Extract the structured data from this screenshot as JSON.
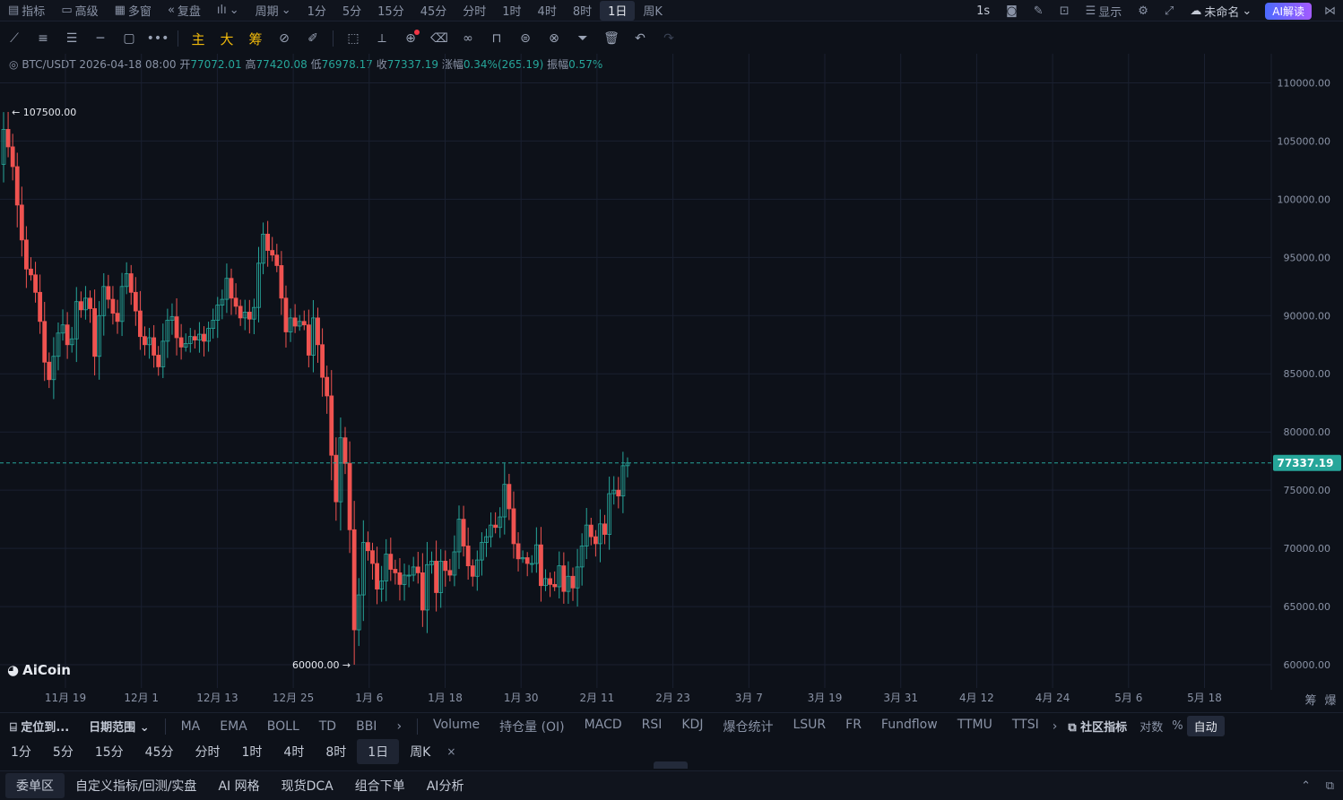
{
  "topbar": {
    "left": [
      "指标",
      "高级",
      "多窗",
      "复盘"
    ],
    "chart_type_icon": "candle-icon",
    "period_label": "周期",
    "periods": [
      "1分",
      "5分",
      "15分",
      "45分",
      "分时",
      "1时",
      "4时",
      "8时",
      "1日",
      "周K"
    ],
    "active_period": "1日",
    "right": {
      "interval": "1s",
      "display": "显示",
      "name": "未命名",
      "ai": "AI解读"
    }
  },
  "drawtools": {
    "gold": [
      "主",
      "大",
      "筹"
    ]
  },
  "ohlc": {
    "symbol": "BTC/USDT",
    "date": "2026-04-18 08:00",
    "open_label": "开",
    "open": "77072.01",
    "high_label": "高",
    "high": "77420.08",
    "low_label": "低",
    "low": "76978.17",
    "close_label": "收",
    "close": "77337.19",
    "change_label": "涨幅",
    "change": "0.34%(265.19)",
    "amp_label": "振幅",
    "amp": "0.57%"
  },
  "logo": "AiCoin",
  "indicators": {
    "locate": "定位到...",
    "range": "日期范围",
    "main": [
      "MA",
      "EMA",
      "BOLL",
      "TD",
      "BBI"
    ],
    "sub": [
      "Volume",
      "持仓量 (OI)",
      "MACD",
      "RSI",
      "KDJ",
      "爆仓统计",
      "LSUR",
      "FR",
      "Fundflow",
      "TTMU",
      "TTSI"
    ],
    "community": "社区指标",
    "log": "对数",
    "pct": "%",
    "auto": "自动"
  },
  "interval_tabs": [
    "1分",
    "5分",
    "15分",
    "45分",
    "分时",
    "1时",
    "4时",
    "8时",
    "1日",
    "周K"
  ],
  "active_interval": "1日",
  "bottom_tabs": [
    "委单区",
    "自定义指标/回测/实盘",
    "AI 网格",
    "现货DCA",
    "组合下单",
    "AI分析"
  ],
  "axis_extra": [
    "筹",
    "爆"
  ],
  "colors": {
    "up": "#26a69a",
    "down": "#ef5350",
    "bg": "#0d1119",
    "grid": "#1a2030"
  },
  "chart_data": {
    "type": "candlestick",
    "pair": "BTC/USDT",
    "y_ticks": [
      110000,
      105000,
      100000,
      95000,
      90000,
      85000,
      80000,
      75000,
      70000,
      65000,
      60000
    ],
    "ylim": [
      58000,
      112500
    ],
    "x_ticks": [
      "11月 19",
      "12月 1",
      "12月 13",
      "12月 25",
      "1月 6",
      "1月 18",
      "1月 30",
      "2月 11",
      "2月 23",
      "3月 7",
      "3月 19",
      "3月 31",
      "4月 12",
      "4月 24",
      "5月 6",
      "5月 18"
    ],
    "last_price": 77337.19,
    "max_marker": "107500.00",
    "min_marker": "60000.00",
    "closes": [
      106000,
      104500,
      102800,
      99500,
      96500,
      94000,
      93500,
      92000,
      89500,
      86000,
      84500,
      86500,
      88500,
      89200,
      87500,
      88000,
      91200,
      90500,
      91500,
      90600,
      86500,
      90000,
      92500,
      91400,
      90200,
      89500,
      92500,
      93600,
      92000,
      90400,
      88200,
      87500,
      88100,
      86600,
      85600,
      87800,
      89600,
      89900,
      88100,
      87300,
      87600,
      88200,
      87900,
      88400,
      87800,
      88900,
      89600,
      90900,
      91400,
      93200,
      91500,
      90800,
      89800,
      90300,
      89700,
      90700,
      94500,
      97000,
      95600,
      95200,
      94300,
      91500,
      88600,
      89800,
      89100,
      89500,
      89200,
      86600,
      89800,
      87500,
      84700,
      83100,
      78000,
      74000,
      79500,
      77300,
      71600,
      63000,
      66000,
      70500,
      69800,
      68700,
      66500,
      67200,
      69500,
      68200,
      67900,
      66900,
      67700,
      67700,
      68400,
      67900,
      64700,
      68600,
      68900,
      66200,
      68900,
      68100,
      67700,
      69700,
      72500,
      70200,
      68500,
      67600,
      69000,
      70500,
      71000,
      72000,
      71800,
      72700,
      75500,
      73400,
      70400,
      69100,
      69200,
      68700,
      68700,
      70300,
      66800,
      67400,
      66900,
      66700,
      68500,
      66300,
      67600,
      66600,
      68400,
      70200,
      72000,
      71000,
      70400,
      72100,
      71200,
      74700,
      75000,
      74500,
      77100,
      77337
    ]
  }
}
